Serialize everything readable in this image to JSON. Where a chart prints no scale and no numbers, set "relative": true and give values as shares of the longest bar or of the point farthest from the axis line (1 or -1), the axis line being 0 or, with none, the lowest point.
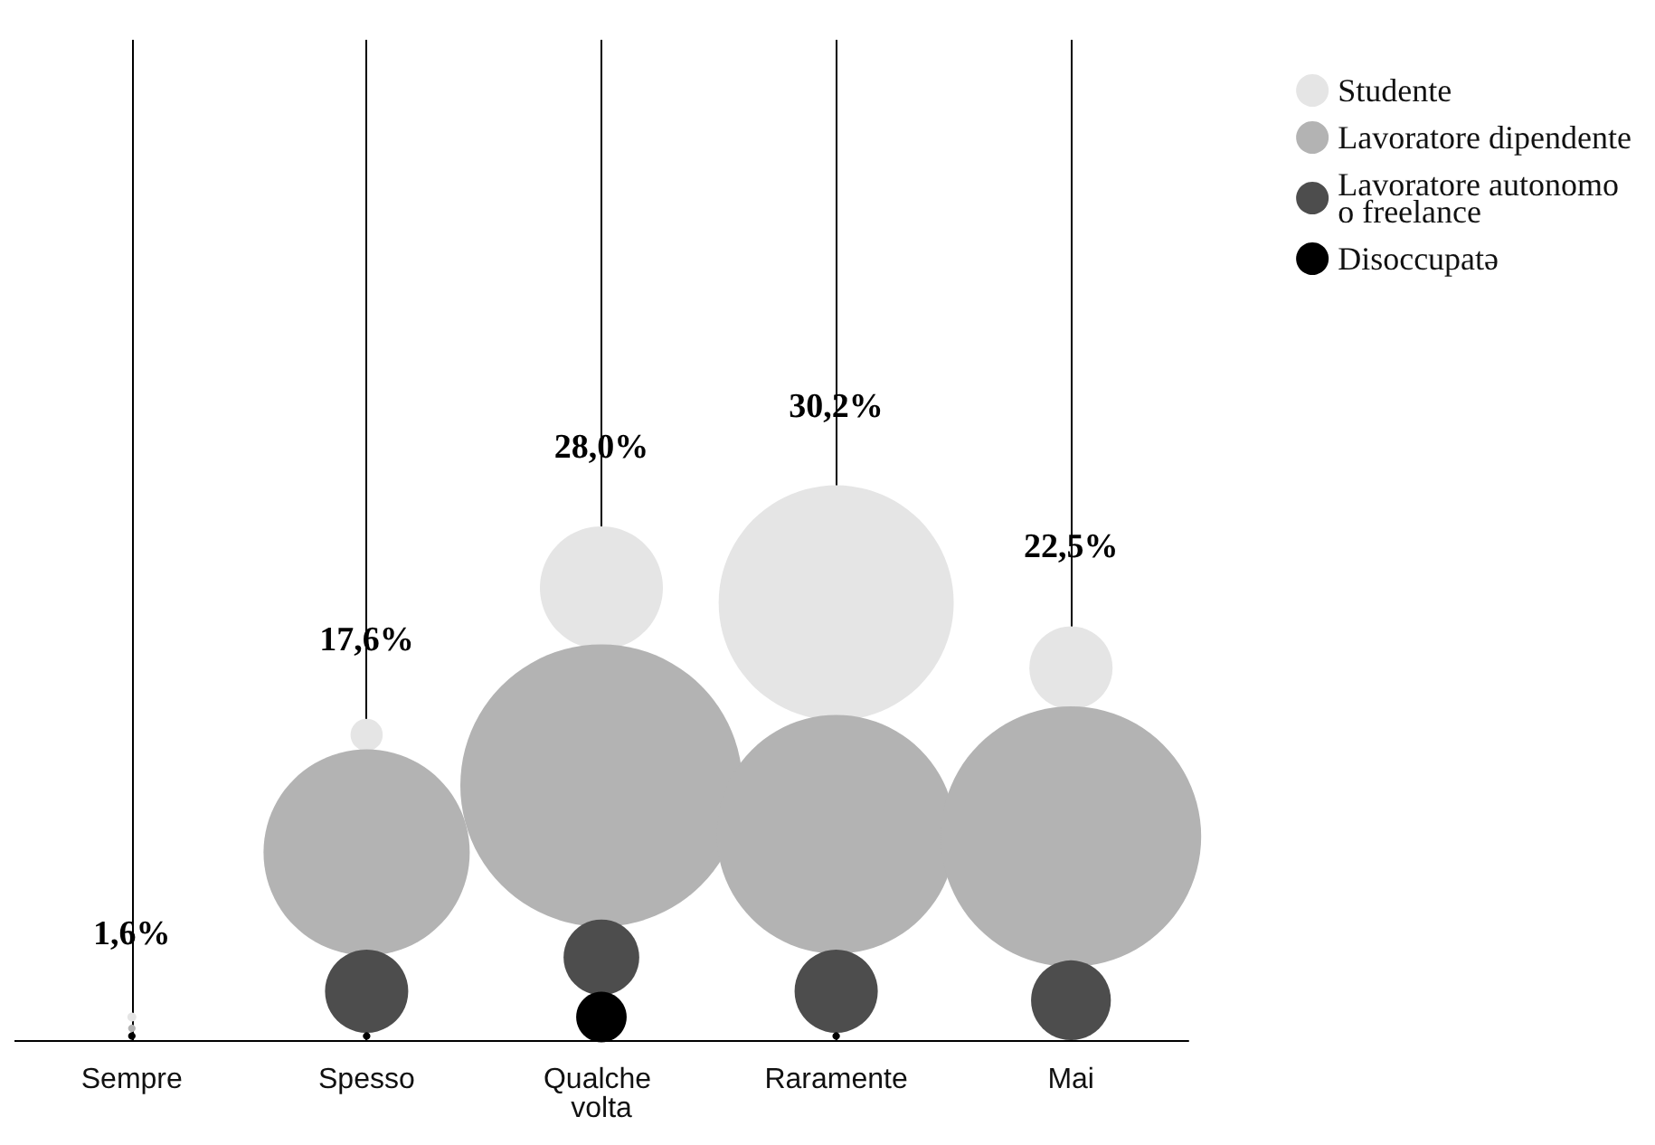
{
  "chart_data": {
    "type": "bubble",
    "relative": true,
    "grid": "x",
    "legend": "top right",
    "marker": "circle",
    "categories": [
      "Sempre",
      "Spesso",
      "Qualche volta",
      "Raramente",
      "Mai"
    ],
    "totals": [
      "1,6%",
      "17,6%",
      "28,0%",
      "30,2%",
      "22,5%"
    ],
    "series": [
      {
        "name": "Studente",
        "color": "#e5e5e5",
        "values": [
          0.051,
          0.675,
          1,
          0.967,
          0.823
        ],
        "sizes": [
          0.001,
          0.013,
          0.19,
          0.694,
          0.087
        ]
      },
      {
        "name": "Lavoratore dipendente",
        "color": "#b3b3b3",
        "values": [
          0.026,
          0.415,
          0.563,
          0.455,
          0.45
        ],
        "sizes": [
          0.0007,
          0.534,
          1,
          0.716,
          0.852
        ]
      },
      {
        "name": "Lavoratore autonomo\no freelance",
        "color": "#4d4d4d",
        "values": [
          null,
          0.108,
          0.183,
          0.108,
          0.088
        ],
        "sizes": [
          null,
          0.087,
          0.072,
          0.087,
          0.08
        ]
      },
      {
        "name": "Disoccupatə",
        "color": "#000000",
        "values": [
          0.009,
          0.009,
          0.051,
          0.009,
          null
        ],
        "sizes": [
          0.0007,
          0.0007,
          0.032,
          0.0007,
          null
        ]
      }
    ]
  }
}
